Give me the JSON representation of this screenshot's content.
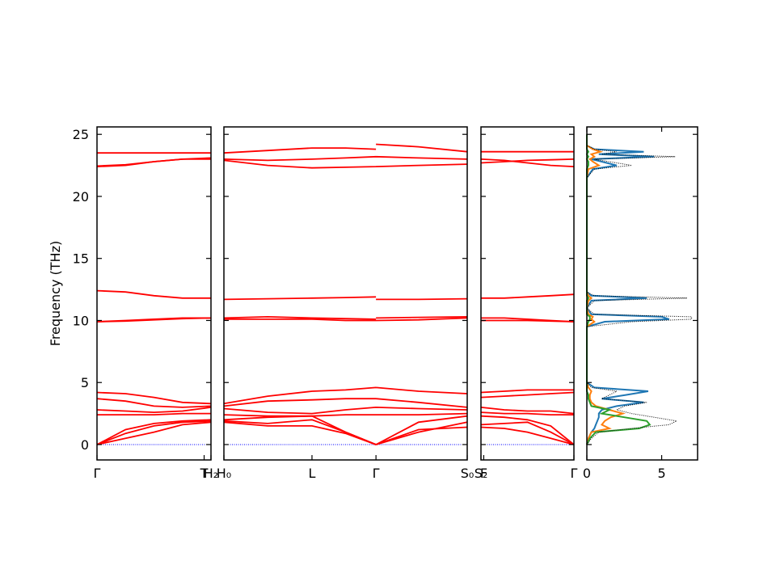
{
  "chart_data": [
    {
      "type": "bands",
      "ylabel": "Frequency (THz)",
      "ylim": [
        -1.24,
        25.6
      ],
      "yticks": [
        0,
        5,
        10,
        15,
        20,
        25
      ],
      "xlim": [
        0,
        1
      ],
      "x": [
        0,
        0.25,
        0.5,
        0.75,
        1
      ],
      "xticks": [
        {
          "value": 0,
          "label": "Γ"
        },
        {
          "value": 0.94,
          "label": "T"
        },
        {
          "value": 1,
          "label": "H₂"
        }
      ],
      "color": "#ff0000",
      "reference_line": 0,
      "reference_color": "#0000ff",
      "series": [
        {
          "values": [
            0,
            0.9,
            1.5,
            1.8,
            1.9
          ]
        },
        {
          "values": [
            0,
            1.2,
            1.7,
            1.9,
            2.0
          ]
        },
        {
          "values": [
            0,
            0.5,
            1.0,
            1.6,
            1.8
          ]
        },
        {
          "values": [
            2.4,
            2.4,
            2.4,
            2.5,
            2.5
          ]
        },
        {
          "values": [
            2.8,
            2.7,
            2.6,
            2.7,
            3.0
          ]
        },
        {
          "values": [
            3.7,
            3.5,
            3.1,
            3.0,
            3.1
          ]
        },
        {
          "values": [
            4.2,
            4.1,
            3.8,
            3.4,
            3.3
          ]
        },
        {
          "values": [
            9.9,
            10.0,
            10.1,
            10.2,
            10.2
          ]
        },
        {
          "values": [
            9.9,
            9.95,
            10.05,
            10.15,
            10.2
          ]
        },
        {
          "values": [
            12.4,
            12.3,
            12.0,
            11.8,
            11.8
          ]
        },
        {
          "values": [
            22.4,
            22.5,
            22.8,
            23.0,
            23.1
          ]
        },
        {
          "values": [
            22.45,
            22.55,
            22.8,
            23.0,
            23.0
          ]
        },
        {
          "values": [
            23.5,
            23.5,
            23.5,
            23.5,
            23.5
          ]
        }
      ]
    },
    {
      "type": "bands",
      "xlim": [
        0,
        1
      ],
      "x": [
        0,
        0.18,
        0.362,
        0.5,
        0.625,
        0.625,
        0.625,
        0.8,
        1
      ],
      "xticks": [
        {
          "value": 0,
          "label": "H₀"
        },
        {
          "value": 0.362,
          "label": "L"
        },
        {
          "value": 0.625,
          "label": "Γ"
        },
        {
          "value": 1,
          "label": "S₀"
        }
      ],
      "color": "#ff0000",
      "reference_line": 0,
      "reference_color": "#0000ff",
      "series": [
        {
          "values": [
            1.8,
            1.5,
            1.5,
            0.9,
            0,
            null,
            0,
            1.2,
            1.4
          ]
        },
        {
          "values": [
            2.0,
            2.2,
            2.3,
            1.0,
            0,
            null,
            0,
            1.8,
            2.3
          ]
        },
        {
          "values": [
            1.9,
            1.7,
            2.0,
            1.0,
            0,
            null,
            0,
            1.0,
            1.8
          ]
        },
        {
          "values": [
            2.4,
            2.3,
            2.3,
            2.4,
            2.4,
            null,
            2.4,
            2.4,
            2.5
          ]
        },
        {
          "values": [
            2.9,
            2.6,
            2.5,
            2.8,
            3.0,
            null,
            3.0,
            2.9,
            2.8
          ]
        },
        {
          "values": [
            3.1,
            3.5,
            3.6,
            3.7,
            3.7,
            null,
            3.7,
            3.4,
            3.0
          ]
        },
        {
          "values": [
            3.3,
            3.9,
            4.3,
            4.4,
            4.6,
            null,
            4.6,
            4.3,
            4.1
          ]
        },
        {
          "values": [
            10.1,
            10.1,
            10.1,
            10.0,
            10.0,
            null,
            10.0,
            10.05,
            10.2
          ]
        },
        {
          "values": [
            10.2,
            10.3,
            10.2,
            10.15,
            10.1,
            null,
            10.2,
            10.25,
            10.3
          ]
        },
        {
          "values": [
            11.7,
            11.75,
            11.8,
            11.85,
            11.9,
            null,
            11.7,
            11.7,
            11.75
          ]
        },
        {
          "values": [
            22.9,
            22.5,
            22.3,
            22.35,
            22.4,
            null,
            22.4,
            22.5,
            22.6
          ]
        },
        {
          "values": [
            23.0,
            22.9,
            23.0,
            23.1,
            23.2,
            null,
            23.2,
            23.1,
            23.0
          ]
        },
        {
          "values": [
            23.5,
            23.7,
            23.9,
            23.9,
            23.8,
            null,
            24.2,
            24.0,
            23.6
          ]
        }
      ]
    },
    {
      "type": "bands",
      "xlim": [
        0,
        1
      ],
      "x": [
        0,
        0.25,
        0.5,
        0.75,
        1
      ],
      "xticks": [
        {
          "value": 0,
          "label": "S₂"
        },
        {
          "value": 0.03,
          "label": "F"
        },
        {
          "value": 1,
          "label": "Γ"
        }
      ],
      "color": "#ff0000",
      "reference_line": 0,
      "reference_color": "#0000ff",
      "series": [
        {
          "values": [
            1.4,
            1.3,
            1.0,
            0.5,
            0
          ]
        },
        {
          "values": [
            1.6,
            1.7,
            1.8,
            1.0,
            0
          ]
        },
        {
          "values": [
            2.3,
            2.2,
            2.0,
            1.5,
            0
          ]
        },
        {
          "values": [
            2.6,
            2.5,
            2.5,
            2.4,
            2.4
          ]
        },
        {
          "values": [
            3.0,
            2.8,
            2.7,
            2.7,
            2.5
          ]
        },
        {
          "values": [
            3.8,
            3.9,
            4.0,
            4.1,
            4.2
          ]
        },
        {
          "values": [
            4.2,
            4.3,
            4.4,
            4.4,
            4.4
          ]
        },
        {
          "values": [
            10.0,
            10.0,
            10.0,
            9.95,
            9.9
          ]
        },
        {
          "values": [
            10.2,
            10.2,
            10.1,
            10.0,
            9.9
          ]
        },
        {
          "values": [
            11.8,
            11.8,
            11.9,
            12.0,
            12.1
          ]
        },
        {
          "values": [
            22.7,
            22.8,
            22.9,
            22.95,
            23.0
          ]
        },
        {
          "values": [
            23.0,
            22.9,
            22.7,
            22.5,
            22.4
          ]
        },
        {
          "values": [
            23.6,
            23.6,
            23.6,
            23.6,
            23.6
          ]
        }
      ]
    },
    {
      "type": "dos",
      "xlim": [
        0,
        7.4
      ],
      "xticks": [
        0,
        5
      ],
      "y": [
        0,
        0.5,
        1.0,
        1.3,
        1.6,
        1.9,
        2.2,
        2.5,
        2.8,
        3.1,
        3.4,
        3.7,
        4.0,
        4.3,
        4.6,
        5,
        9.5,
        9.9,
        10.1,
        10.3,
        10.5,
        11,
        11.6,
        11.8,
        12.0,
        12.3,
        21.5,
        22.2,
        22.5,
        22.8,
        23.0,
        23.2,
        23.4,
        23.6,
        23.8,
        24.1,
        25
      ],
      "series": [
        {
          "color": "#1f77b4",
          "values": [
            0,
            0.1,
            0.3,
            0.5,
            0.6,
            0.7,
            0.8,
            0.8,
            1,
            2,
            3.8,
            1,
            2.6,
            4.1,
            0.5,
            0,
            0,
            1.2,
            5.5,
            5,
            0.3,
            0,
            0.3,
            4,
            0.3,
            0,
            0,
            0.4,
            2,
            1,
            0.3,
            4.5,
            0.8,
            3.8,
            0.5,
            0,
            0
          ]
        },
        {
          "color": "#ff7f0e",
          "values": [
            0,
            0.1,
            0.3,
            1.5,
            1.0,
            1.2,
            1.6,
            2.4,
            1.5,
            0.6,
            0.3,
            0.2,
            0.2,
            0.3,
            0.1,
            0,
            0,
            0.5,
            0.3,
            0.4,
            0.1,
            0,
            0.1,
            0.3,
            0.1,
            0,
            0,
            0.1,
            0.8,
            0.4,
            0.2,
            0.5,
            0.3,
            0.9,
            0.4,
            0,
            0
          ]
        },
        {
          "color": "#2ca02c",
          "values": [
            0,
            0.2,
            0.6,
            3.5,
            4.2,
            4,
            2.5,
            1,
            1.5,
            0.3,
            0.2,
            0.1,
            0.1,
            0,
            0,
            0,
            0,
            0.1,
            0.2,
            0.2,
            0,
            0,
            0,
            0.1,
            0,
            0,
            0,
            0,
            0.1,
            0.1,
            0,
            0.1,
            0,
            0.1,
            0,
            0,
            0
          ]
        },
        {
          "color": "#000000",
          "dotted": true,
          "values": [
            0,
            0.3,
            0.8,
            3,
            5.5,
            6,
            4.5,
            3,
            2,
            2.5,
            4,
            1,
            1.5,
            2,
            0.3,
            0,
            0,
            3,
            7,
            7,
            0.5,
            0,
            0.5,
            6.7,
            0.5,
            0,
            0,
            0.5,
            3,
            1.5,
            0.5,
            5.9,
            1,
            2,
            0.5,
            0,
            0
          ]
        }
      ]
    }
  ]
}
